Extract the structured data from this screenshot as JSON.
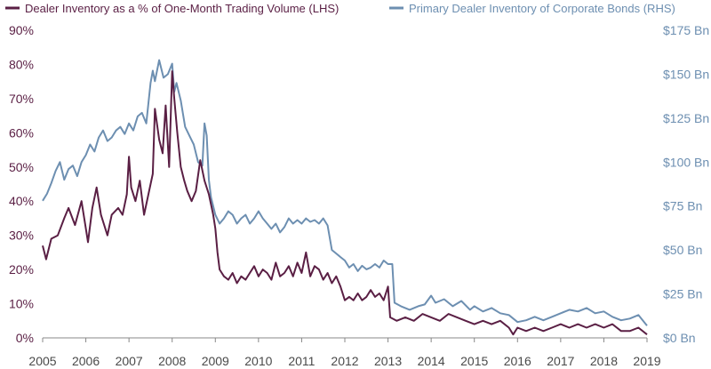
{
  "chart_data": {
    "type": "line",
    "title": "",
    "xlabel": "",
    "ylabel_left": "",
    "ylabel_right": "",
    "x_ticks": [
      "2005",
      "2006",
      "2007",
      "2008",
      "2009",
      "2010",
      "2011",
      "2012",
      "2013",
      "2014",
      "2015",
      "2016",
      "2017",
      "2018",
      "2019"
    ],
    "x_range": [
      2005,
      2019
    ],
    "y_left": {
      "range": [
        0,
        90
      ],
      "ticks": [
        0,
        10,
        20,
        30,
        40,
        50,
        60,
        70,
        80,
        90
      ],
      "tick_labels": [
        "0%",
        "10%",
        "20%",
        "30%",
        "40%",
        "50%",
        "60%",
        "70%",
        "80%",
        "90%"
      ]
    },
    "y_right": {
      "range": [
        0,
        175
      ],
      "ticks": [
        0,
        25,
        50,
        75,
        100,
        125,
        150,
        175
      ],
      "tick_labels": [
        "$0 Bn",
        "$25 Bn",
        "$50 Bn",
        "$75 Bn",
        "$100 Bn",
        "$125 Bn",
        "$150 Bn",
        "$175 Bn"
      ]
    },
    "grid": false,
    "legend_position": "top",
    "series": [
      {
        "name": "Dealer Inventory as a % of One-Month Trading Volume (LHS)",
        "axis": "left",
        "color": "#5a1f44",
        "points": [
          [
            2005.0,
            27
          ],
          [
            2005.08,
            23
          ],
          [
            2005.2,
            29
          ],
          [
            2005.35,
            30
          ],
          [
            2005.5,
            35
          ],
          [
            2005.6,
            38
          ],
          [
            2005.75,
            33
          ],
          [
            2005.9,
            40
          ],
          [
            2006.0,
            32
          ],
          [
            2006.05,
            28
          ],
          [
            2006.15,
            38
          ],
          [
            2006.25,
            44
          ],
          [
            2006.35,
            36
          ],
          [
            2006.5,
            30
          ],
          [
            2006.6,
            36
          ],
          [
            2006.75,
            38
          ],
          [
            2006.85,
            36
          ],
          [
            2006.95,
            42
          ],
          [
            2007.0,
            53
          ],
          [
            2007.05,
            44
          ],
          [
            2007.15,
            40
          ],
          [
            2007.25,
            46
          ],
          [
            2007.35,
            36
          ],
          [
            2007.45,
            42
          ],
          [
            2007.55,
            48
          ],
          [
            2007.6,
            67
          ],
          [
            2007.7,
            58
          ],
          [
            2007.78,
            54
          ],
          [
            2007.85,
            68
          ],
          [
            2007.93,
            50
          ],
          [
            2008.0,
            78
          ],
          [
            2008.05,
            70
          ],
          [
            2008.12,
            60
          ],
          [
            2008.2,
            50
          ],
          [
            2008.28,
            46
          ],
          [
            2008.35,
            43
          ],
          [
            2008.45,
            40
          ],
          [
            2008.55,
            43
          ],
          [
            2008.65,
            52
          ],
          [
            2008.75,
            46
          ],
          [
            2008.85,
            42
          ],
          [
            2008.95,
            36
          ],
          [
            2009.0,
            32
          ],
          [
            2009.05,
            25
          ],
          [
            2009.1,
            20
          ],
          [
            2009.2,
            18
          ],
          [
            2009.3,
            17
          ],
          [
            2009.4,
            19
          ],
          [
            2009.5,
            16
          ],
          [
            2009.6,
            18
          ],
          [
            2009.7,
            17
          ],
          [
            2009.8,
            19
          ],
          [
            2009.9,
            21
          ],
          [
            2010.0,
            18
          ],
          [
            2010.1,
            20
          ],
          [
            2010.2,
            19
          ],
          [
            2010.3,
            17
          ],
          [
            2010.4,
            22
          ],
          [
            2010.5,
            18
          ],
          [
            2010.6,
            19
          ],
          [
            2010.7,
            21
          ],
          [
            2010.8,
            18
          ],
          [
            2010.9,
            22
          ],
          [
            2011.0,
            19
          ],
          [
            2011.1,
            25
          ],
          [
            2011.2,
            18
          ],
          [
            2011.3,
            21
          ],
          [
            2011.4,
            20
          ],
          [
            2011.5,
            17
          ],
          [
            2011.6,
            19
          ],
          [
            2011.7,
            16
          ],
          [
            2011.8,
            18
          ],
          [
            2011.9,
            15
          ],
          [
            2012.0,
            11
          ],
          [
            2012.1,
            12
          ],
          [
            2012.2,
            11
          ],
          [
            2012.3,
            13
          ],
          [
            2012.4,
            11
          ],
          [
            2012.5,
            12
          ],
          [
            2012.6,
            14
          ],
          [
            2012.7,
            12
          ],
          [
            2012.8,
            13
          ],
          [
            2012.9,
            11
          ],
          [
            2013.0,
            15
          ],
          [
            2013.05,
            6
          ],
          [
            2013.2,
            5
          ],
          [
            2013.4,
            6
          ],
          [
            2013.6,
            5
          ],
          [
            2013.8,
            7
          ],
          [
            2014.0,
            6
          ],
          [
            2014.2,
            5
          ],
          [
            2014.4,
            7
          ],
          [
            2014.6,
            6
          ],
          [
            2014.8,
            5
          ],
          [
            2015.0,
            4
          ],
          [
            2015.2,
            5
          ],
          [
            2015.4,
            4
          ],
          [
            2015.6,
            5
          ],
          [
            2015.8,
            3
          ],
          [
            2015.9,
            1
          ],
          [
            2016.0,
            3
          ],
          [
            2016.2,
            2
          ],
          [
            2016.4,
            3
          ],
          [
            2016.6,
            2
          ],
          [
            2016.8,
            3
          ],
          [
            2017.0,
            4
          ],
          [
            2017.2,
            3
          ],
          [
            2017.4,
            4
          ],
          [
            2017.6,
            3
          ],
          [
            2017.8,
            4
          ],
          [
            2018.0,
            3
          ],
          [
            2018.2,
            4
          ],
          [
            2018.4,
            2
          ],
          [
            2018.6,
            2
          ],
          [
            2018.8,
            3
          ],
          [
            2019.0,
            1
          ]
        ]
      },
      {
        "name": "Primary Dealer Inventory of Corporate Bonds (RHS)",
        "axis": "right",
        "color": "#6d8fb1",
        "points": [
          [
            2005.0,
            78
          ],
          [
            2005.1,
            82
          ],
          [
            2005.2,
            88
          ],
          [
            2005.3,
            95
          ],
          [
            2005.4,
            100
          ],
          [
            2005.5,
            90
          ],
          [
            2005.6,
            96
          ],
          [
            2005.7,
            98
          ],
          [
            2005.8,
            92
          ],
          [
            2005.9,
            100
          ],
          [
            2006.0,
            104
          ],
          [
            2006.1,
            110
          ],
          [
            2006.2,
            106
          ],
          [
            2006.3,
            114
          ],
          [
            2006.4,
            118
          ],
          [
            2006.5,
            112
          ],
          [
            2006.6,
            114
          ],
          [
            2006.7,
            118
          ],
          [
            2006.8,
            120
          ],
          [
            2006.9,
            116
          ],
          [
            2007.0,
            122
          ],
          [
            2007.1,
            118
          ],
          [
            2007.2,
            126
          ],
          [
            2007.3,
            128
          ],
          [
            2007.4,
            122
          ],
          [
            2007.5,
            145
          ],
          [
            2007.55,
            152
          ],
          [
            2007.6,
            146
          ],
          [
            2007.7,
            158
          ],
          [
            2007.8,
            148
          ],
          [
            2007.9,
            150
          ],
          [
            2008.0,
            156
          ],
          [
            2008.05,
            140
          ],
          [
            2008.1,
            145
          ],
          [
            2008.2,
            135
          ],
          [
            2008.3,
            120
          ],
          [
            2008.4,
            115
          ],
          [
            2008.5,
            110
          ],
          [
            2008.6,
            100
          ],
          [
            2008.7,
            98
          ],
          [
            2008.75,
            122
          ],
          [
            2008.8,
            115
          ],
          [
            2008.85,
            90
          ],
          [
            2008.9,
            80
          ],
          [
            2009.0,
            70
          ],
          [
            2009.1,
            65
          ],
          [
            2009.2,
            68
          ],
          [
            2009.3,
            72
          ],
          [
            2009.4,
            70
          ],
          [
            2009.5,
            65
          ],
          [
            2009.6,
            68
          ],
          [
            2009.7,
            70
          ],
          [
            2009.8,
            65
          ],
          [
            2009.9,
            68
          ],
          [
            2010.0,
            72
          ],
          [
            2010.1,
            68
          ],
          [
            2010.2,
            65
          ],
          [
            2010.3,
            62
          ],
          [
            2010.4,
            65
          ],
          [
            2010.5,
            60
          ],
          [
            2010.6,
            63
          ],
          [
            2010.7,
            68
          ],
          [
            2010.8,
            65
          ],
          [
            2010.9,
            67
          ],
          [
            2011.0,
            65
          ],
          [
            2011.1,
            68
          ],
          [
            2011.2,
            66
          ],
          [
            2011.3,
            67
          ],
          [
            2011.4,
            65
          ],
          [
            2011.5,
            68
          ],
          [
            2011.6,
            64
          ],
          [
            2011.7,
            50
          ],
          [
            2011.8,
            48
          ],
          [
            2011.9,
            46
          ],
          [
            2012.0,
            44
          ],
          [
            2012.1,
            40
          ],
          [
            2012.2,
            42
          ],
          [
            2012.3,
            38
          ],
          [
            2012.4,
            41
          ],
          [
            2012.5,
            39
          ],
          [
            2012.6,
            40
          ],
          [
            2012.7,
            42
          ],
          [
            2012.8,
            40
          ],
          [
            2012.9,
            44
          ],
          [
            2013.0,
            42
          ],
          [
            2013.1,
            42
          ],
          [
            2013.15,
            20
          ],
          [
            2013.3,
            18
          ],
          [
            2013.5,
            16
          ],
          [
            2013.7,
            18
          ],
          [
            2013.85,
            19
          ],
          [
            2014.0,
            24
          ],
          [
            2014.1,
            20
          ],
          [
            2014.3,
            22
          ],
          [
            2014.5,
            18
          ],
          [
            2014.7,
            21
          ],
          [
            2014.9,
            16
          ],
          [
            2015.0,
            18
          ],
          [
            2015.2,
            15
          ],
          [
            2015.4,
            17
          ],
          [
            2015.6,
            14
          ],
          [
            2015.8,
            13
          ],
          [
            2016.0,
            9
          ],
          [
            2016.2,
            10
          ],
          [
            2016.4,
            12
          ],
          [
            2016.6,
            10
          ],
          [
            2016.8,
            12
          ],
          [
            2017.0,
            14
          ],
          [
            2017.2,
            16
          ],
          [
            2017.4,
            15
          ],
          [
            2017.6,
            17
          ],
          [
            2017.8,
            14
          ],
          [
            2018.0,
            15
          ],
          [
            2018.2,
            12
          ],
          [
            2018.4,
            10
          ],
          [
            2018.6,
            11
          ],
          [
            2018.8,
            13
          ],
          [
            2019.0,
            7
          ]
        ]
      }
    ]
  }
}
